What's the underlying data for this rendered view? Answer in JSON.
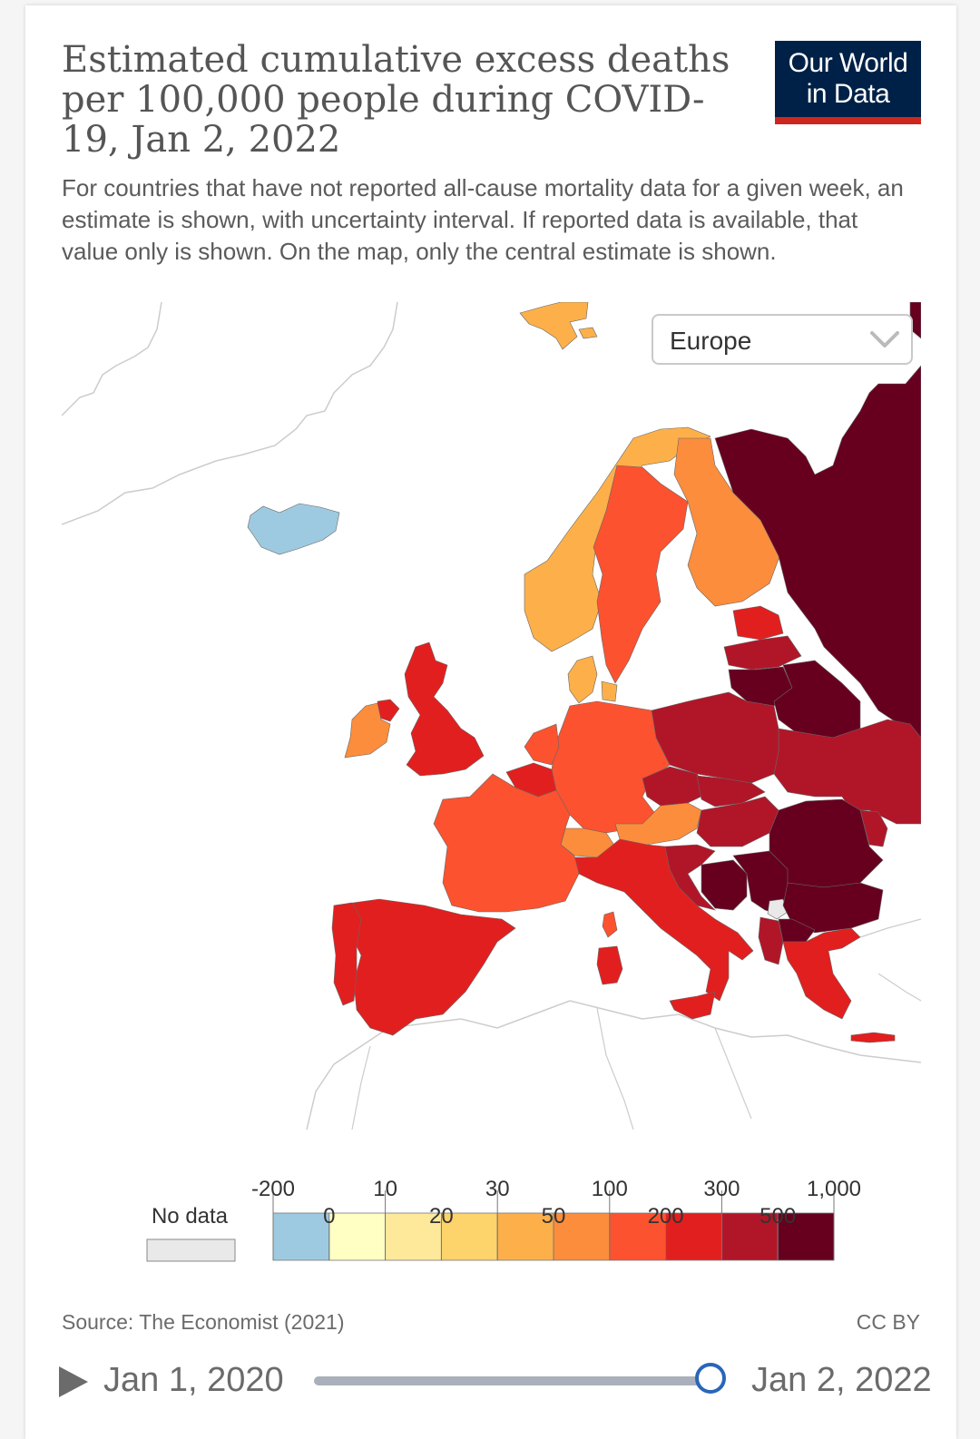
{
  "header": {
    "title": "Estimated cumulative excess deaths per 100,000 people during COVID-19, Jan 2, 2022",
    "subtitle": "For countries that have not reported all-cause mortality data for a given week, an estimate is shown, with uncertainty interval. If reported data is available, that value only is shown. On the map, only the central estimate is shown.",
    "logo_line1": "Our World",
    "logo_line2": "in Data"
  },
  "region_select": {
    "value": "Europe"
  },
  "legend": {
    "no_data_label": "No data",
    "no_data_color": "#e9e9e9",
    "top_labels": [
      "-200",
      "10",
      "30",
      "100",
      "300",
      "1,000"
    ],
    "bottom_labels": [
      "0",
      "20",
      "50",
      "200",
      "500"
    ],
    "colors": [
      "#9ecae1",
      "#ffffc4",
      "#fee99b",
      "#fdd36b",
      "#fdb04a",
      "#fc8d3c",
      "#fc5230",
      "#e21f1f",
      "#b11628",
      "#67001f"
    ]
  },
  "footer": {
    "source": "Source: The Economist (2021)",
    "license": "CC BY"
  },
  "timeline": {
    "start_date": "Jan 1, 2020",
    "end_date": "Jan 2, 2022",
    "position_fraction": 1.0
  },
  "map_palette": {
    "iceland": "#9ecae1",
    "norway": "#fdb04a",
    "svalbard": "#fdb04a",
    "sweden": "#fc5230",
    "finland": "#fc8d3c",
    "denmark": "#fdb04a",
    "uk": "#e21f1f",
    "ireland": "#fc8d3c",
    "northern_ireland": "#e21f1f",
    "france": "#fc5230",
    "belgium": "#e21f1f",
    "netherlands": "#fc5230",
    "germany": "#fc5230",
    "poland": "#b11628",
    "czechia": "#b11628",
    "austria": "#fc8d3c",
    "switzerland": "#fc8d3c",
    "italy": "#e21f1f",
    "spain": "#e21f1f",
    "portugal": "#e21f1f",
    "hungary": "#b11628",
    "slovakia": "#b11628",
    "romania": "#67001f",
    "bulgaria": "#67001f",
    "serbia": "#67001f",
    "bosnia": "#67001f",
    "croatia": "#b11628",
    "greece": "#e21f1f",
    "ukraine": "#b11628",
    "belarus": "#67001f",
    "russia": "#67001f",
    "lithuania": "#67001f",
    "latvia": "#b11628",
    "estonia": "#e21f1f",
    "kosovo": "#e9e9e9",
    "albania": "#b11628",
    "north_macedonia": "#67001f",
    "moldova": "#b11628",
    "sardinia": "#e21f1f",
    "corsica": "#fc5230",
    "sicily": "#e21f1f",
    "crete": "#e21f1f"
  }
}
